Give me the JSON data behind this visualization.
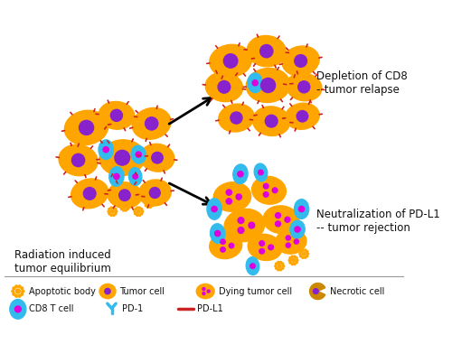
{
  "bg_color": "#ffffff",
  "orange": "#FFA500",
  "orange_dark": "#CC8800",
  "blue": "#33BBEE",
  "purple": "#8822CC",
  "magenta": "#DD00DD",
  "red": "#CC2222",
  "text_color": "#111111",
  "label_depletion": "Depletion of CD8\n--tumor relapse",
  "label_neutralization": "Neutralization of PD-L1\n-- tumor rejection",
  "label_equilibrium": "Radiation induced\ntumor equilibrium",
  "fig_w": 5.0,
  "fig_h": 3.81,
  "dpi": 100
}
